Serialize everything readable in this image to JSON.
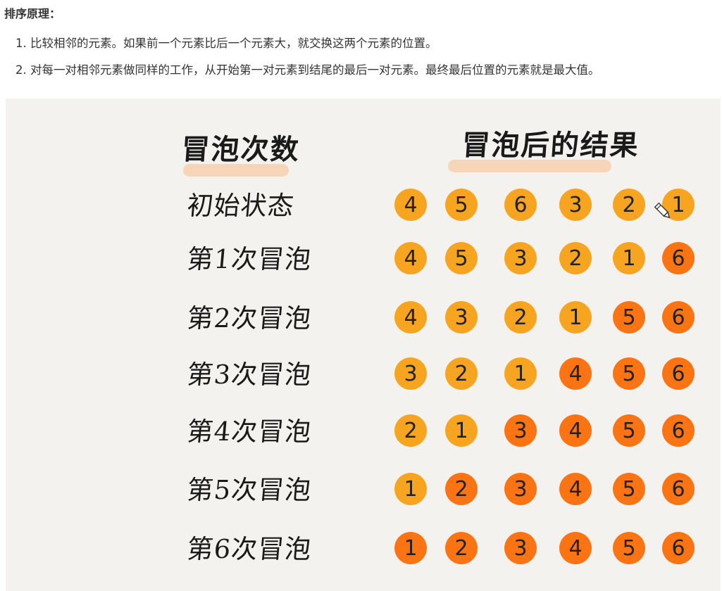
{
  "doc": {
    "heading": "排序原理：",
    "steps": [
      "1. 比较相邻的元素。如果前一个元素比后一个元素大，就交换这两个元素的位置。",
      "2. 对每一对相邻元素做同样的工作，从开始第一对元素到结尾的最后一对元素。最终最后位置的元素就是最大值。"
    ]
  },
  "figure": {
    "col_label": "冒泡次数",
    "col_result": "冒泡后的结果",
    "colors": {
      "unsorted": "#f7a520",
      "sorted": "#fb7414"
    },
    "rows": [
      {
        "label": "初始状态",
        "values": [
          4,
          5,
          6,
          3,
          2,
          1
        ],
        "sorted_count": 0
      },
      {
        "label": "第1次冒泡",
        "values": [
          4,
          5,
          3,
          2,
          1,
          6
        ],
        "sorted_count": 1
      },
      {
        "label": "第2次冒泡",
        "values": [
          4,
          3,
          2,
          1,
          5,
          6
        ],
        "sorted_count": 2
      },
      {
        "label": "第3次冒泡",
        "values": [
          3,
          2,
          1,
          4,
          5,
          6
        ],
        "sorted_count": 3
      },
      {
        "label": "第4次冒泡",
        "values": [
          2,
          1,
          3,
          4,
          5,
          6
        ],
        "sorted_count": 4
      },
      {
        "label": "第5次冒泡",
        "values": [
          1,
          2,
          3,
          4,
          5,
          6
        ],
        "sorted_count": 5
      },
      {
        "label": "第6次冒泡",
        "values": [
          1,
          2,
          3,
          4,
          5,
          6
        ],
        "sorted_count": 6
      }
    ]
  }
}
